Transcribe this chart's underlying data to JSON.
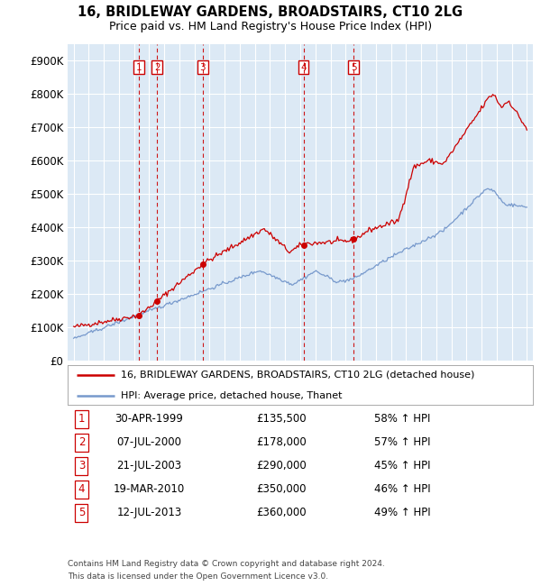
{
  "title": "16, BRIDLEWAY GARDENS, BROADSTAIRS, CT10 2LG",
  "subtitle": "Price paid vs. HM Land Registry's House Price Index (HPI)",
  "ylabel_ticks": [
    "£0",
    "£100K",
    "£200K",
    "£300K",
    "£400K",
    "£500K",
    "£600K",
    "£700K",
    "£800K",
    "£900K"
  ],
  "ytick_values": [
    0,
    100000,
    200000,
    300000,
    400000,
    500000,
    600000,
    700000,
    800000,
    900000
  ],
  "ylim": [
    0,
    950000
  ],
  "sale_dates_year": [
    1999.33,
    2000.52,
    2003.55,
    2010.21,
    2013.53
  ],
  "sale_prices": [
    135500,
    178000,
    290000,
    350000,
    360000
  ],
  "sale_labels": [
    "1",
    "2",
    "3",
    "4",
    "5"
  ],
  "sale_table": [
    {
      "num": "1",
      "date": "30-APR-1999",
      "price": "£135,500",
      "change": "58% ↑ HPI"
    },
    {
      "num": "2",
      "date": "07-JUL-2000",
      "price": "£178,000",
      "change": "57% ↑ HPI"
    },
    {
      "num": "3",
      "date": "21-JUL-2003",
      "price": "£290,000",
      "change": "45% ↑ HPI"
    },
    {
      "num": "4",
      "date": "19-MAR-2010",
      "price": "£350,000",
      "change": "46% ↑ HPI"
    },
    {
      "num": "5",
      "date": "12-JUL-2013",
      "price": "£360,000",
      "change": "49% ↑ HPI"
    }
  ],
  "legend_line1": "16, BRIDLEWAY GARDENS, BROADSTAIRS, CT10 2LG (detached house)",
  "legend_line2": "HPI: Average price, detached house, Thanet",
  "footnote1": "Contains HM Land Registry data © Crown copyright and database right 2024.",
  "footnote2": "This data is licensed under the Open Government Licence v3.0.",
  "bg_color": "#dce9f5",
  "grid_color": "#ffffff",
  "red_line_color": "#cc0000",
  "blue_line_color": "#7799cc"
}
